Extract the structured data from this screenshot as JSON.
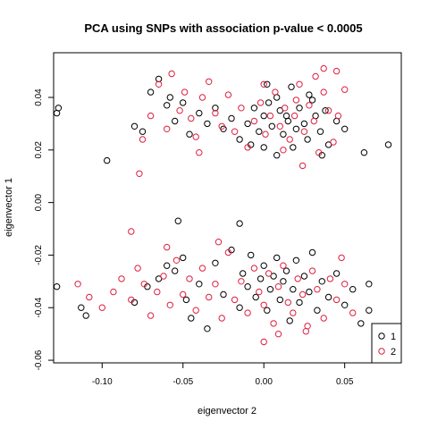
{
  "chart_data": {
    "type": "scatter",
    "title": "PCA using SNPs with association p-value < 0.0005",
    "xlabel": "eigenvector 2",
    "ylabel": "eigenvector 1",
    "xlim": [
      -0.13,
      0.085
    ],
    "ylim": [
      -0.061,
      0.057
    ],
    "xticks": [
      -0.1,
      -0.05,
      0.0,
      0.05
    ],
    "xtick_labels": [
      "-0.10",
      "-0.05",
      "0.00",
      "0.05"
    ],
    "yticks": [
      -0.06,
      -0.04,
      -0.02,
      0.0,
      0.02,
      0.04
    ],
    "ytick_labels": [
      "-0.06",
      "-0.04",
      "-0.02",
      "0.00",
      "0.02",
      "0.04"
    ],
    "grid": false,
    "legend_position": "bottom-right",
    "marker": "open-circle",
    "series": [
      {
        "name": "1",
        "color": "#000000",
        "points": [
          [
            -0.128,
            0.034
          ],
          [
            -0.127,
            0.036
          ],
          [
            -0.097,
            0.016
          ],
          [
            -0.08,
            0.029
          ],
          [
            -0.075,
            0.027
          ],
          [
            -0.07,
            0.042
          ],
          [
            -0.065,
            0.047
          ],
          [
            -0.06,
            0.037
          ],
          [
            -0.058,
            0.04
          ],
          [
            -0.055,
            0.031
          ],
          [
            -0.05,
            0.038
          ],
          [
            -0.046,
            0.026
          ],
          [
            -0.04,
            0.034
          ],
          [
            -0.035,
            0.03
          ],
          [
            -0.03,
            0.036
          ],
          [
            -0.025,
            0.028
          ],
          [
            -0.02,
            0.032
          ],
          [
            -0.015,
            0.024
          ],
          [
            -0.01,
            0.03
          ],
          [
            -0.006,
            0.036
          ],
          [
            -0.003,
            0.027
          ],
          [
            0.0,
            0.033
          ],
          [
            0.003,
            0.038
          ],
          [
            0.005,
            0.029
          ],
          [
            0.008,
            0.04
          ],
          [
            0.01,
            0.035
          ],
          [
            0.012,
            0.026
          ],
          [
            0.015,
            0.031
          ],
          [
            0.017,
            0.044
          ],
          [
            0.02,
            0.028
          ],
          [
            0.022,
            0.036
          ],
          [
            0.025,
            0.03
          ],
          [
            0.027,
            0.024
          ],
          [
            0.03,
            0.039
          ],
          [
            0.032,
            0.033
          ],
          [
            0.035,
            0.027
          ],
          [
            0.038,
            0.035
          ],
          [
            0.04,
            0.022
          ],
          [
            0.045,
            0.031
          ],
          [
            0.05,
            0.028
          ],
          [
            0.018,
            0.021
          ],
          [
            0.008,
            0.018
          ],
          [
            0.002,
            0.045
          ],
          [
            0.036,
            0.018
          ],
          [
            0.062,
            0.019
          ],
          [
            0.077,
            0.022
          ],
          [
            0.0,
            0.021
          ],
          [
            -0.008,
            0.022
          ],
          [
            0.028,
            0.041
          ],
          [
            0.014,
            0.033
          ],
          [
            -0.128,
            -0.032
          ],
          [
            -0.113,
            -0.04
          ],
          [
            -0.11,
            -0.043
          ],
          [
            -0.08,
            -0.038
          ],
          [
            -0.072,
            -0.032
          ],
          [
            -0.065,
            -0.029
          ],
          [
            -0.06,
            -0.024
          ],
          [
            -0.055,
            -0.026
          ],
          [
            -0.05,
            -0.021
          ],
          [
            -0.048,
            -0.037
          ],
          [
            -0.045,
            -0.044
          ],
          [
            -0.04,
            -0.031
          ],
          [
            -0.035,
            -0.048
          ],
          [
            -0.03,
            -0.023
          ],
          [
            -0.025,
            -0.035
          ],
          [
            -0.02,
            -0.018
          ],
          [
            -0.015,
            -0.04
          ],
          [
            -0.013,
            -0.027
          ],
          [
            -0.01,
            -0.032
          ],
          [
            -0.008,
            -0.02
          ],
          [
            -0.005,
            -0.036
          ],
          [
            -0.002,
            -0.029
          ],
          [
            0.0,
            -0.024
          ],
          [
            0.002,
            -0.041
          ],
          [
            0.004,
            -0.033
          ],
          [
            0.006,
            -0.028
          ],
          [
            0.008,
            -0.021
          ],
          [
            0.01,
            -0.037
          ],
          [
            0.012,
            -0.03
          ],
          [
            0.014,
            -0.026
          ],
          [
            0.016,
            -0.045
          ],
          [
            0.018,
            -0.033
          ],
          [
            0.02,
            -0.022
          ],
          [
            0.022,
            -0.038
          ],
          [
            0.025,
            -0.028
          ],
          [
            0.028,
            -0.034
          ],
          [
            0.03,
            -0.019
          ],
          [
            0.033,
            -0.041
          ],
          [
            0.036,
            -0.03
          ],
          [
            0.04,
            -0.036
          ],
          [
            0.045,
            -0.027
          ],
          [
            0.05,
            -0.039
          ],
          [
            0.055,
            -0.033
          ],
          [
            0.06,
            -0.046
          ],
          [
            0.065,
            -0.041
          ],
          [
            0.07,
            -0.049
          ],
          [
            0.075,
            -0.051
          ],
          [
            -0.053,
            -0.007
          ],
          [
            -0.015,
            -0.008
          ],
          [
            0.065,
            -0.031
          ]
        ]
      },
      {
        "name": "2",
        "color": "#df1f3e",
        "points": [
          [
            -0.077,
            0.011
          ],
          [
            -0.075,
            0.024
          ],
          [
            -0.07,
            0.033
          ],
          [
            -0.065,
            0.045
          ],
          [
            -0.06,
            0.028
          ],
          [
            -0.057,
            0.049
          ],
          [
            -0.052,
            0.035
          ],
          [
            -0.049,
            0.042
          ],
          [
            -0.045,
            0.032
          ],
          [
            -0.042,
            0.025
          ],
          [
            -0.038,
            0.04
          ],
          [
            -0.034,
            0.046
          ],
          [
            -0.03,
            0.034
          ],
          [
            -0.026,
            0.029
          ],
          [
            -0.022,
            0.041
          ],
          [
            -0.018,
            0.027
          ],
          [
            -0.014,
            0.036
          ],
          [
            -0.01,
            0.021
          ],
          [
            -0.006,
            0.031
          ],
          [
            -0.002,
            0.038
          ],
          [
            0.001,
            0.026
          ],
          [
            0.004,
            0.033
          ],
          [
            0.007,
            0.042
          ],
          [
            0.01,
            0.029
          ],
          [
            0.013,
            0.036
          ],
          [
            0.016,
            0.024
          ],
          [
            0.019,
            0.033
          ],
          [
            0.022,
            0.045
          ],
          [
            0.025,
            0.027
          ],
          [
            0.028,
            0.037
          ],
          [
            0.031,
            0.031
          ],
          [
            0.034,
            0.019
          ],
          [
            0.037,
            0.042
          ],
          [
            0.04,
            0.035
          ],
          [
            0.043,
            0.023
          ],
          [
            0.046,
            0.033
          ],
          [
            0.05,
            0.043
          ],
          [
            0.024,
            0.014
          ],
          [
            0.012,
            0.02
          ],
          [
            0.037,
            0.051
          ],
          [
            0.045,
            0.05
          ],
          [
            -0.04,
            0.019
          ],
          [
            0.0,
            0.045
          ],
          [
            0.032,
            0.048
          ],
          [
            0.02,
            0.039
          ],
          [
            -0.115,
            -0.031
          ],
          [
            -0.108,
            -0.036
          ],
          [
            -0.1,
            -0.04
          ],
          [
            -0.093,
            -0.034
          ],
          [
            -0.088,
            -0.029
          ],
          [
            -0.082,
            -0.037
          ],
          [
            -0.078,
            -0.025
          ],
          [
            -0.074,
            -0.031
          ],
          [
            -0.07,
            -0.043
          ],
          [
            -0.066,
            -0.034
          ],
          [
            -0.062,
            -0.028
          ],
          [
            -0.058,
            -0.039
          ],
          [
            -0.054,
            -0.022
          ],
          [
            -0.05,
            -0.035
          ],
          [
            -0.046,
            -0.029
          ],
          [
            -0.042,
            -0.041
          ],
          [
            -0.038,
            -0.025
          ],
          [
            -0.034,
            -0.036
          ],
          [
            -0.03,
            -0.031
          ],
          [
            -0.026,
            -0.044
          ],
          [
            -0.022,
            -0.019
          ],
          [
            -0.018,
            -0.037
          ],
          [
            -0.014,
            -0.03
          ],
          [
            -0.01,
            -0.042
          ],
          [
            -0.006,
            -0.025
          ],
          [
            -0.003,
            -0.034
          ],
          [
            0.0,
            -0.039
          ],
          [
            0.003,
            -0.027
          ],
          [
            0.006,
            -0.046
          ],
          [
            0.009,
            -0.032
          ],
          [
            0.012,
            -0.024
          ],
          [
            0.015,
            -0.038
          ],
          [
            0.018,
            -0.042
          ],
          [
            0.021,
            -0.029
          ],
          [
            0.024,
            -0.035
          ],
          [
            0.027,
            -0.047
          ],
          [
            0.03,
            -0.026
          ],
          [
            0.033,
            -0.033
          ],
          [
            0.037,
            -0.044
          ],
          [
            0.041,
            -0.029
          ],
          [
            0.045,
            -0.037
          ],
          [
            0.05,
            -0.031
          ],
          [
            0.055,
            -0.042
          ],
          [
            -0.06,
            -0.017
          ],
          [
            -0.028,
            -0.015
          ],
          [
            0.0,
            -0.053
          ],
          [
            0.026,
            -0.049
          ],
          [
            -0.082,
            -0.011
          ],
          [
            0.048,
            -0.021
          ],
          [
            0.009,
            -0.05
          ]
        ]
      }
    ]
  }
}
